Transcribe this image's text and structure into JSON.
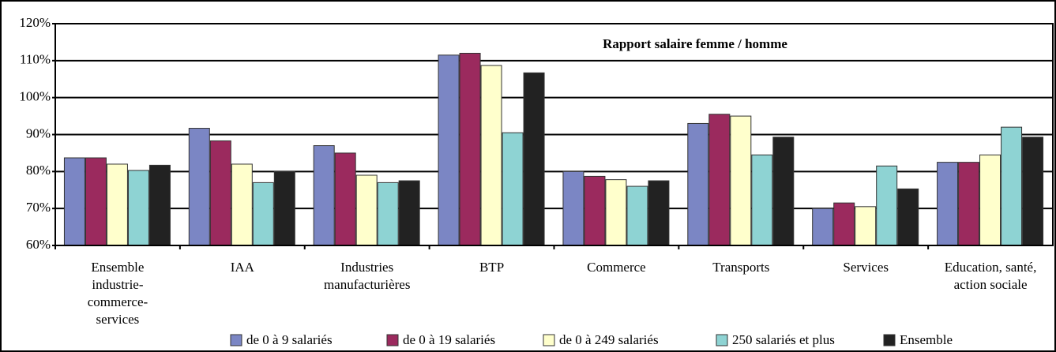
{
  "chart_data": {
    "type": "bar",
    "title": "Rapport salaire femme / homme",
    "categories": [
      "Ensemble industrie-commerce-services",
      "IAA",
      "Industries manufacturières",
      "BTP",
      "Commerce",
      "Transports",
      "Services",
      "Education, santé, action sociale"
    ],
    "series": [
      {
        "name": "de 0 à 9 salariés",
        "color": "#7b86c4",
        "values": [
          83.7,
          91.7,
          87,
          111.5,
          80,
          93,
          70,
          82.5
        ]
      },
      {
        "name": "de 0 à 19 salariés",
        "color": "#9b2a5e",
        "values": [
          83.7,
          88.3,
          85,
          112,
          78.7,
          95.5,
          71.5,
          82.5
        ]
      },
      {
        "name": "de 0 à 249 salariés",
        "color": "#ffffcc",
        "values": [
          82,
          82,
          79,
          108.7,
          77.8,
          95,
          70.5,
          84.5
        ]
      },
      {
        "name": "250 salariés et plus",
        "color": "#8ed3d3",
        "values": [
          80.3,
          77,
          77,
          90.5,
          76,
          84.5,
          81.5,
          92
        ]
      },
      {
        "name": "Ensemble",
        "color": "#222222",
        "values": [
          81.7,
          80,
          77.5,
          106.7,
          77.5,
          89.3,
          75.3,
          89.3
        ]
      }
    ],
    "ylim": [
      60,
      120
    ],
    "yticks": [
      {
        "value": 60,
        "label": "60%"
      },
      {
        "value": 70,
        "label": "70%"
      },
      {
        "value": 80,
        "label": "80%"
      },
      {
        "value": 90,
        "label": "90%"
      },
      {
        "value": 100,
        "label": "100%"
      },
      {
        "value": 110,
        "label": "110%"
      },
      {
        "value": 120,
        "label": "120%"
      }
    ],
    "grid": true
  }
}
